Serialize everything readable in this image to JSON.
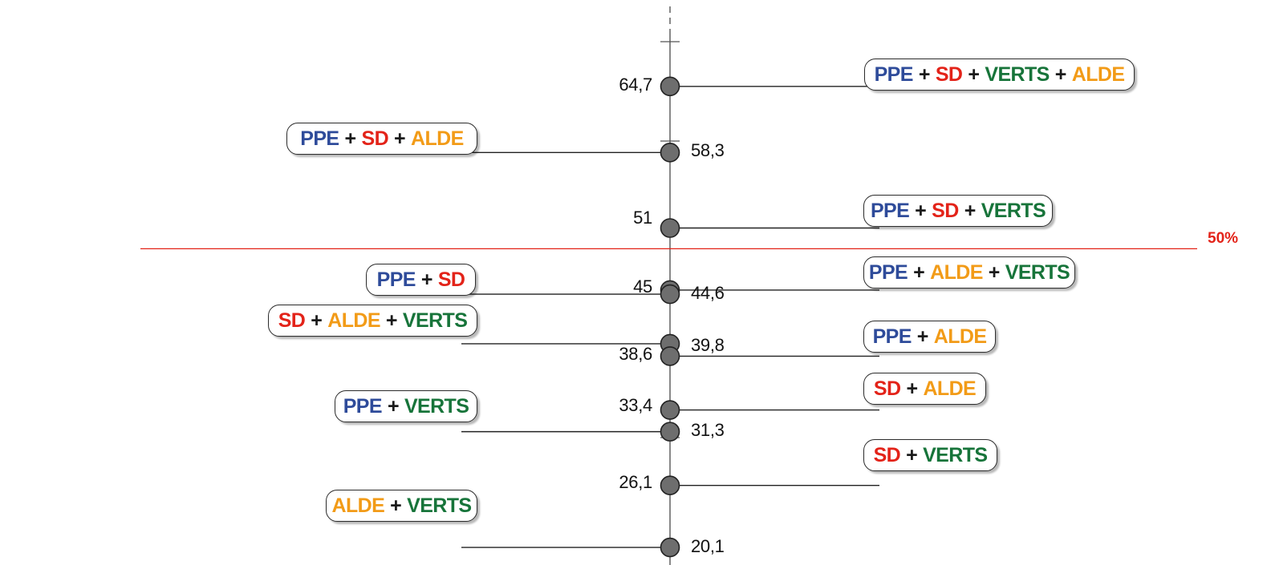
{
  "colors": {
    "PPE": "#2e4b9a",
    "SD": "#e32319",
    "ALDE": "#f29b17",
    "VERTS": "#17743a",
    "threshold": "#e32319",
    "dot": "#6e6e6e"
  },
  "chart_data": {
    "type": "scatter",
    "ylim": [
      14,
      75
    ],
    "threshold": {
      "value": 50,
      "label": "50%"
    },
    "points": [
      {
        "value": 64.7,
        "value_label": "64,7",
        "side": "right",
        "parties": [
          "PPE",
          "SD",
          "VERTS",
          "ALDE"
        ]
      },
      {
        "value": 58.3,
        "value_label": "58,3",
        "side": "left",
        "parties": [
          "PPE",
          "SD",
          "ALDE"
        ]
      },
      {
        "value": 51,
        "value_label": "51",
        "side": "right",
        "parties": [
          "PPE",
          "SD",
          "VERTS"
        ]
      },
      {
        "value": 45,
        "value_label": "45",
        "side": "right",
        "parties": [
          "PPE",
          "ALDE",
          "VERTS"
        ]
      },
      {
        "value": 44.6,
        "value_label": "44,6",
        "side": "left",
        "parties": [
          "PPE",
          "SD"
        ]
      },
      {
        "value": 39.8,
        "value_label": "39,8",
        "side": "left",
        "parties": [
          "SD",
          "ALDE",
          "VERTS"
        ]
      },
      {
        "value": 38.6,
        "value_label": "38,6",
        "side": "right",
        "parties": [
          "PPE",
          "ALDE"
        ]
      },
      {
        "value": 33.4,
        "value_label": "33,4",
        "side": "right",
        "parties": [
          "SD",
          "ALDE"
        ]
      },
      {
        "value": 31.3,
        "value_label": "31,3",
        "side": "left",
        "parties": [
          "PPE",
          "VERTS"
        ]
      },
      {
        "value": 26.1,
        "value_label": "26,1",
        "side": "right",
        "parties": [
          "SD",
          "VERTS"
        ]
      },
      {
        "value": 20.1,
        "value_label": "20,1",
        "side": "left",
        "parties": [
          "ALDE",
          "VERTS"
        ]
      }
    ]
  }
}
